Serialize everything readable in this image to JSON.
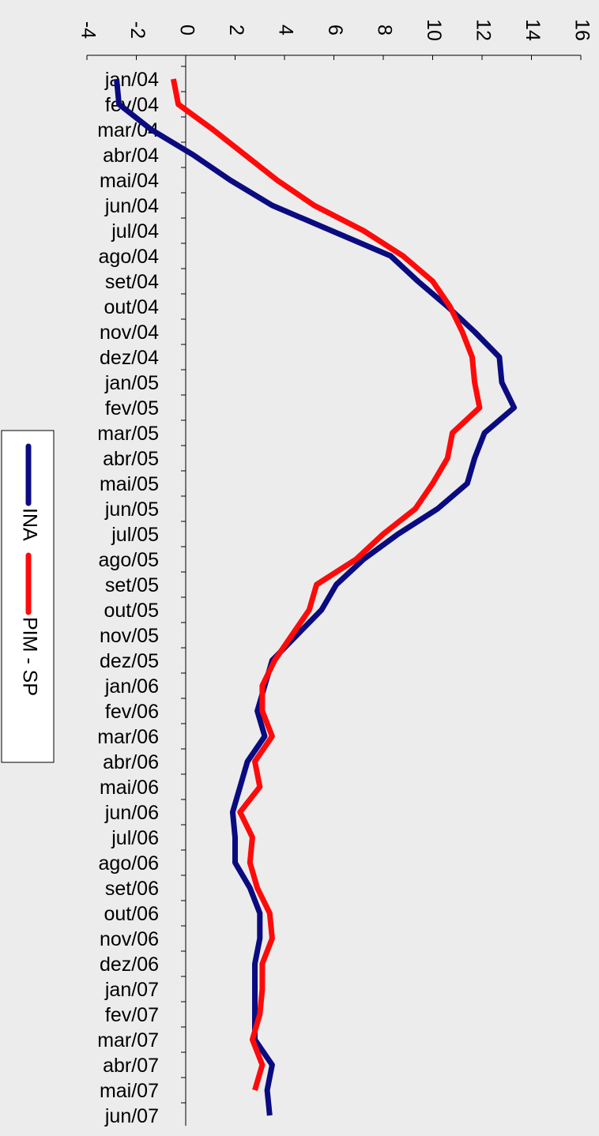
{
  "chart_data": {
    "type": "line",
    "categories": [
      "jan/04",
      "fev/04",
      "mar/04",
      "abr/04",
      "mai/04",
      "jun/04",
      "jul/04",
      "ago/04",
      "set/04",
      "out/04",
      "nov/04",
      "dez/04",
      "jan/05",
      "fev/05",
      "mar/05",
      "abr/05",
      "mai/05",
      "jun/05",
      "jul/05",
      "ago/05",
      "set/05",
      "out/05",
      "nov/05",
      "dez/05",
      "jan/06",
      "fev/06",
      "mar/06",
      "abr/06",
      "mai/06",
      "jun/06",
      "jul/06",
      "ago/06",
      "set/06",
      "out/06",
      "nov/06",
      "dez/06",
      "jan/07",
      "fev/07",
      "mar/07",
      "abr/07",
      "mai/07",
      "jun/07"
    ],
    "series": [
      {
        "name": "INA",
        "color": "#0b0b80",
        "values": [
          -2.8,
          -2.7,
          -1.4,
          0.3,
          1.8,
          3.5,
          5.9,
          8.3,
          9.4,
          10.6,
          11.7,
          12.7,
          12.8,
          13.3,
          12.1,
          11.7,
          11.4,
          10.2,
          8.6,
          7.2,
          6.1,
          5.5,
          4.5,
          3.5,
          3.2,
          2.9,
          3.2,
          2.5,
          2.2,
          1.9,
          2.0,
          2.0,
          2.6,
          3.0,
          3.0,
          2.8,
          2.8,
          2.8,
          2.8,
          3.5,
          3.3,
          3.4
        ]
      },
      {
        "name": "PIM - SP",
        "color": "#ff0a0a",
        "values": [
          -0.5,
          -0.3,
          1.1,
          2.4,
          3.7,
          5.2,
          7.2,
          8.8,
          10.0,
          10.7,
          11.2,
          11.6,
          11.7,
          11.9,
          10.8,
          10.6,
          10.0,
          9.3,
          8.0,
          6.9,
          5.3,
          5.0,
          4.3,
          3.6,
          3.1,
          3.1,
          3.5,
          2.8,
          3.0,
          2.2,
          2.7,
          2.6,
          2.9,
          3.4,
          3.5,
          3.1,
          3.1,
          3.0,
          2.7,
          3.1,
          2.8,
          null
        ]
      }
    ],
    "ylim": [
      -4,
      16
    ],
    "yticks": [
      -4,
      -2,
      0,
      2,
      4,
      6,
      8,
      10,
      12,
      14,
      16
    ]
  }
}
